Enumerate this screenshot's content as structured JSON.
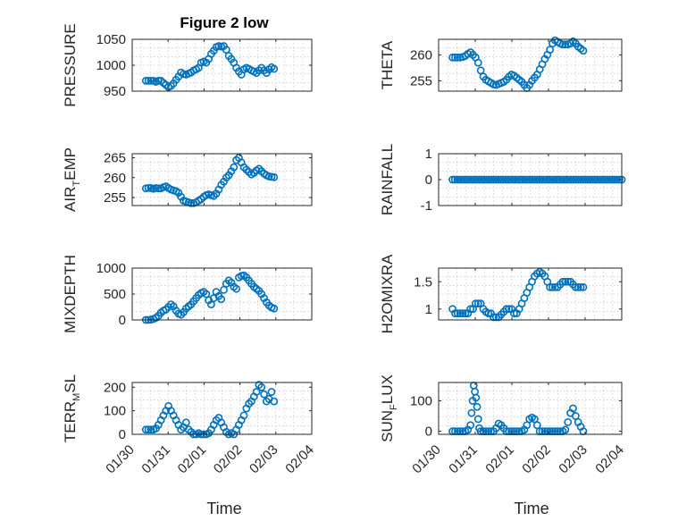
{
  "figure_title": "Figure 2 low",
  "x_axis_label": "Time",
  "x_tick_labels": [
    "01/30",
    "01/31",
    "02/01",
    "02/02",
    "02/03",
    "02/04"
  ],
  "marker_color": "#0072BD",
  "chart_data": [
    {
      "type": "scatter",
      "title": "Figure 2 low",
      "ylabel": "PRESSURE",
      "ylim": [
        950,
        1050
      ],
      "yticks": [
        950,
        1000,
        1050
      ],
      "grid": true,
      "x_unit": "days since 01/30 00:00",
      "xlim": [
        0,
        5
      ],
      "x": [
        0.38,
        0.45,
        0.52,
        0.59,
        0.66,
        0.73,
        0.8,
        0.87,
        0.94,
        1.01,
        1.08,
        1.15,
        1.22,
        1.29,
        1.36,
        1.43,
        1.5,
        1.57,
        1.64,
        1.71,
        1.78,
        1.85,
        1.92,
        1.99,
        2.06,
        2.13,
        2.2,
        2.27,
        2.34,
        2.41,
        2.48,
        2.55,
        2.62,
        2.69,
        2.76,
        2.83,
        2.9,
        2.97,
        3.04,
        3.11,
        3.18,
        3.25,
        3.32,
        3.39,
        3.46,
        3.53,
        3.6,
        3.67,
        3.74,
        3.81,
        3.88,
        3.95
      ],
      "y": [
        970,
        970,
        970,
        970,
        968,
        970,
        970,
        966,
        962,
        958,
        960,
        965,
        972,
        978,
        986,
        983,
        982,
        984,
        986,
        990,
        992,
        995,
        1005,
        1007,
        1005,
        1012,
        1022,
        1028,
        1035,
        1037,
        1036,
        1037,
        1030,
        1018,
        1012,
        1005,
        995,
        988,
        982,
        992,
        995,
        993,
        990,
        988,
        985,
        990,
        995,
        990,
        985,
        992,
        996,
        993
      ]
    },
    {
      "type": "scatter",
      "ylabel": "THETA",
      "ylim": [
        253,
        263
      ],
      "yticks": [
        255,
        260
      ],
      "grid": true,
      "x_unit": "days since 01/30 00:00",
      "xlim": [
        0,
        5
      ],
      "x": [
        0.38,
        0.45,
        0.52,
        0.59,
        0.66,
        0.73,
        0.8,
        0.87,
        0.94,
        1.01,
        1.08,
        1.15,
        1.22,
        1.29,
        1.36,
        1.43,
        1.5,
        1.57,
        1.64,
        1.71,
        1.78,
        1.85,
        1.92,
        1.99,
        2.06,
        2.13,
        2.2,
        2.27,
        2.34,
        2.41,
        2.48,
        2.55,
        2.62,
        2.69,
        2.76,
        2.83,
        2.9,
        2.97,
        3.04,
        3.11,
        3.18,
        3.25,
        3.32,
        3.39,
        3.46,
        3.53,
        3.6,
        3.67,
        3.74,
        3.81,
        3.88,
        3.95
      ],
      "y": [
        259.5,
        259.5,
        259.5,
        259.5,
        259.6,
        259.8,
        260.2,
        260.5,
        260,
        259.5,
        258.5,
        257,
        255.8,
        255.2,
        254.9,
        254.6,
        254.3,
        254.2,
        254.4,
        254.6,
        254.8,
        255.2,
        255.8,
        256.2,
        256,
        255.6,
        255.2,
        254.8,
        254.2,
        253.6,
        254.2,
        255,
        255.6,
        256.2,
        257.2,
        258.2,
        259.2,
        260,
        261,
        262.2,
        262.8,
        262.5,
        262.2,
        262,
        262,
        262,
        262.2,
        262.6,
        262.2,
        261.6,
        261.2,
        260.8
      ]
    },
    {
      "type": "scatter",
      "ylabel": "AIR_TEMP",
      "ylabel_display": [
        "AIR",
        "T",
        "EMP"
      ],
      "ylim": [
        253,
        266
      ],
      "yticks": [
        255,
        260,
        265
      ],
      "grid": true,
      "x_unit": "days since 01/30 00:00",
      "xlim": [
        0,
        5
      ],
      "x": [
        0.38,
        0.45,
        0.52,
        0.59,
        0.66,
        0.73,
        0.8,
        0.87,
        0.94,
        1.01,
        1.08,
        1.15,
        1.22,
        1.29,
        1.36,
        1.43,
        1.5,
        1.57,
        1.64,
        1.71,
        1.78,
        1.85,
        1.92,
        1.99,
        2.06,
        2.13,
        2.2,
        2.27,
        2.34,
        2.41,
        2.48,
        2.55,
        2.62,
        2.69,
        2.76,
        2.83,
        2.9,
        2.97,
        3.04,
        3.11,
        3.18,
        3.25,
        3.32,
        3.39,
        3.46,
        3.53,
        3.6,
        3.67,
        3.74,
        3.81,
        3.88,
        3.95
      ],
      "y": [
        257.3,
        257.4,
        257.4,
        257.2,
        257.4,
        257.3,
        257.3,
        257.6,
        257.8,
        257.4,
        257,
        256.8,
        256.6,
        256.2,
        255.2,
        254.2,
        254,
        253.8,
        253.6,
        253.6,
        253.8,
        254.2,
        254.6,
        255.2,
        255.6,
        255.8,
        255.6,
        255.4,
        256,
        257,
        258.2,
        259,
        260,
        260.6,
        261.6,
        262.6,
        264.4,
        265,
        263.8,
        262.6,
        262,
        261.4,
        260.8,
        261.2,
        261.8,
        262.2,
        261.6,
        261,
        260.6,
        260.3,
        260.2,
        260.1
      ]
    },
    {
      "type": "scatter",
      "ylabel": "RAINFALL",
      "ylim": [
        -1,
        1
      ],
      "yticks": [
        -1,
        0,
        1
      ],
      "grid": true,
      "x_unit": "days since 01/30 00:00",
      "xlim": [
        0,
        5
      ],
      "x_range": [
        0.38,
        5.0
      ],
      "y_constant": 0
    },
    {
      "type": "scatter",
      "ylabel": "MIXDEPTH",
      "ylim": [
        0,
        1000
      ],
      "yticks": [
        0,
        500,
        1000
      ],
      "grid": true,
      "x_unit": "days since 01/30 00:00",
      "xlim": [
        0,
        5
      ],
      "x": [
        0.38,
        0.45,
        0.52,
        0.59,
        0.66,
        0.73,
        0.8,
        0.87,
        0.94,
        1.01,
        1.08,
        1.15,
        1.22,
        1.29,
        1.36,
        1.43,
        1.5,
        1.57,
        1.64,
        1.71,
        1.78,
        1.85,
        1.92,
        1.99,
        2.06,
        2.13,
        2.2,
        2.27,
        2.34,
        2.41,
        2.48,
        2.55,
        2.62,
        2.69,
        2.76,
        2.83,
        2.9,
        2.97,
        3.04,
        3.11,
        3.18,
        3.25,
        3.32,
        3.39,
        3.46,
        3.53,
        3.6,
        3.67,
        3.74,
        3.81,
        3.88,
        3.95
      ],
      "y": [
        0,
        0,
        5,
        20,
        40,
        80,
        140,
        180,
        200,
        250,
        300,
        260,
        180,
        120,
        100,
        150,
        220,
        260,
        300,
        360,
        420,
        480,
        520,
        540,
        500,
        380,
        300,
        420,
        540,
        460,
        400,
        580,
        700,
        760,
        720,
        640,
        600,
        820,
        850,
        860,
        820,
        760,
        700,
        640,
        600,
        560,
        500,
        420,
        340,
        280,
        240,
        220
      ]
    },
    {
      "type": "scatter",
      "ylabel": "H2OMIXRA",
      "ylim": [
        0.8,
        1.75
      ],
      "yticks": [
        1,
        1.5
      ],
      "grid": true,
      "x_unit": "days since 01/30 00:00",
      "xlim": [
        0,
        5
      ],
      "x": [
        0.38,
        0.45,
        0.52,
        0.59,
        0.66,
        0.73,
        0.8,
        0.87,
        0.94,
        1.01,
        1.08,
        1.15,
        1.22,
        1.29,
        1.36,
        1.43,
        1.5,
        1.57,
        1.64,
        1.71,
        1.78,
        1.85,
        1.92,
        1.99,
        2.06,
        2.13,
        2.2,
        2.27,
        2.34,
        2.41,
        2.48,
        2.55,
        2.62,
        2.69,
        2.76,
        2.83,
        2.9,
        2.97,
        3.04,
        3.11,
        3.18,
        3.25,
        3.32,
        3.39,
        3.46,
        3.53,
        3.6,
        3.67,
        3.74,
        3.81,
        3.88,
        3.95
      ],
      "y": [
        1,
        0.92,
        0.92,
        0.92,
        0.92,
        0.92,
        0.92,
        1.0,
        1.0,
        1.1,
        1.1,
        1.1,
        1.0,
        0.95,
        0.92,
        0.92,
        0.85,
        0.85,
        0.85,
        0.9,
        0.95,
        1.0,
        1.0,
        1.0,
        0.92,
        0.92,
        1.0,
        1.1,
        1.2,
        1.3,
        1.4,
        1.5,
        1.6,
        1.65,
        1.68,
        1.65,
        1.6,
        1.5,
        1.4,
        1.4,
        1.4,
        1.4,
        1.45,
        1.5,
        1.5,
        1.5,
        1.5,
        1.45,
        1.4,
        1.4,
        1.4,
        1.4
      ]
    },
    {
      "type": "scatter",
      "ylabel": "TERR_MSL",
      "ylabel_display": [
        "TERR",
        "M",
        "SL"
      ],
      "ylim": [
        0,
        220
      ],
      "yticks": [
        0,
        100,
        200
      ],
      "grid": true,
      "x_unit": "days since 01/30 00:00",
      "xlim": [
        0,
        5
      ],
      "x": [
        0.38,
        0.45,
        0.52,
        0.59,
        0.66,
        0.73,
        0.8,
        0.87,
        0.94,
        1.01,
        1.08,
        1.15,
        1.22,
        1.29,
        1.36,
        1.43,
        1.5,
        1.57,
        1.64,
        1.71,
        1.78,
        1.85,
        1.92,
        1.99,
        2.06,
        2.13,
        2.2,
        2.27,
        2.34,
        2.41,
        2.48,
        2.55,
        2.62,
        2.69,
        2.76,
        2.83,
        2.9,
        2.97,
        3.04,
        3.11,
        3.18,
        3.25,
        3.32,
        3.39,
        3.46,
        3.53,
        3.6,
        3.67,
        3.74,
        3.81,
        3.88,
        3.95
      ],
      "y": [
        20,
        20,
        20,
        20,
        25,
        40,
        60,
        80,
        100,
        120,
        100,
        80,
        60,
        40,
        20,
        30,
        50,
        20,
        10,
        0,
        0,
        5,
        0,
        0,
        0,
        5,
        20,
        40,
        60,
        70,
        50,
        30,
        10,
        0,
        5,
        0,
        20,
        40,
        60,
        80,
        110,
        130,
        140,
        160,
        180,
        210,
        200,
        170,
        140,
        150,
        180,
        140
      ]
    },
    {
      "type": "scatter",
      "ylabel": "SUN_FLUX",
      "ylabel_display": [
        "SUN",
        "F",
        "LUX"
      ],
      "ylim": [
        -10,
        160
      ],
      "yticks": [
        0,
        100
      ],
      "grid": true,
      "x_unit": "days since 01/30 00:00",
      "xlim": [
        0,
        5
      ],
      "x": [
        0.38,
        0.45,
        0.52,
        0.59,
        0.66,
        0.73,
        0.8,
        0.87,
        0.9,
        0.93,
        0.96,
        0.99,
        1.02,
        1.05,
        1.08,
        1.11,
        1.15,
        1.22,
        1.29,
        1.36,
        1.43,
        1.5,
        1.57,
        1.64,
        1.71,
        1.78,
        1.85,
        1.92,
        1.99,
        2.06,
        2.13,
        2.2,
        2.27,
        2.34,
        2.41,
        2.48,
        2.55,
        2.62,
        2.69,
        2.76,
        2.83,
        2.9,
        2.97,
        3.04,
        3.11,
        3.18,
        3.25,
        3.32,
        3.39,
        3.46,
        3.53,
        3.6,
        3.67,
        3.74,
        3.81,
        3.88,
        3.95
      ],
      "y": [
        0,
        0,
        0,
        0,
        0,
        0,
        5,
        20,
        60,
        100,
        150,
        130,
        110,
        80,
        40,
        10,
        0,
        0,
        0,
        0,
        0,
        0,
        10,
        25,
        20,
        10,
        0,
        0,
        0,
        0,
        0,
        0,
        0,
        5,
        20,
        40,
        45,
        40,
        20,
        0,
        0,
        0,
        0,
        0,
        0,
        0,
        0,
        0,
        0,
        5,
        30,
        60,
        75,
        50,
        30,
        15,
        0
      ]
    }
  ]
}
